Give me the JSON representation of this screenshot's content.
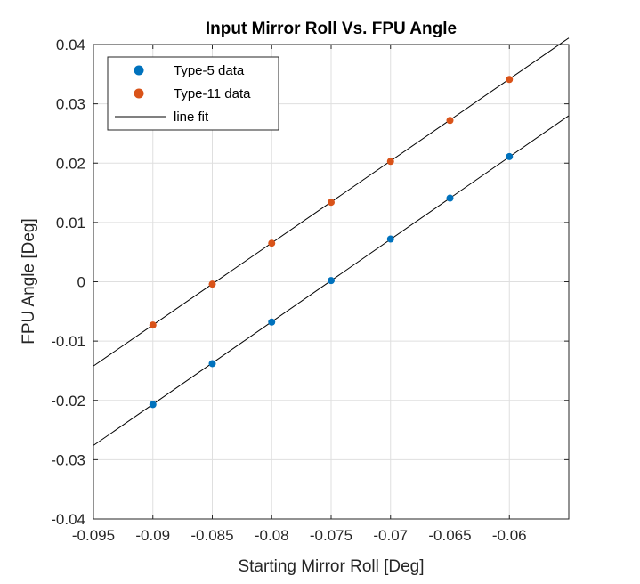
{
  "chart_data": {
    "type": "scatter",
    "title": "Input Mirror Roll Vs. FPU Angle",
    "xlabel": "Starting Mirror Roll [Deg]",
    "ylabel": "FPU Angle [Deg]",
    "xlim": [
      -0.095,
      -0.055
    ],
    "ylim": [
      -0.04,
      0.04
    ],
    "grid": true,
    "legend_position": "top-left",
    "x_ticks": [
      -0.095,
      -0.09,
      -0.085,
      -0.08,
      -0.075,
      -0.07,
      -0.065,
      -0.06
    ],
    "x_tick_labels": [
      "-0.095",
      "-0.09",
      "-0.085",
      "-0.08",
      "-0.075",
      "-0.07",
      "-0.065",
      "-0.06"
    ],
    "y_ticks": [
      -0.04,
      -0.03,
      -0.02,
      -0.01,
      0,
      0.01,
      0.02,
      0.03,
      0.04
    ],
    "y_tick_labels": [
      "-0.04",
      "-0.03",
      "-0.02",
      "-0.01",
      "0",
      "0.01",
      "0.02",
      "0.03",
      "0.04"
    ],
    "series": [
      {
        "name": "Type-5 data",
        "color": "#0072BD",
        "marker": "dot",
        "x": [
          -0.09,
          -0.085,
          -0.08,
          -0.075,
          -0.07,
          -0.065,
          -0.06
        ],
        "y": [
          -0.0207,
          -0.0138,
          -0.0068,
          0.0002,
          0.0072,
          0.0141,
          0.0211
        ]
      },
      {
        "name": "Type-11 data",
        "color": "#D95319",
        "marker": "dot",
        "x": [
          -0.09,
          -0.085,
          -0.08,
          -0.075,
          -0.07,
          -0.065,
          -0.06
        ],
        "y": [
          -0.0073,
          -0.0004,
          0.0065,
          0.0134,
          0.0203,
          0.0272,
          0.0341
        ]
      }
    ],
    "fits": [
      {
        "name": "line fit",
        "color": "#000000",
        "x": [
          -0.095,
          -0.055
        ],
        "y": [
          -0.0276,
          0.028
        ]
      },
      {
        "name": "line fit",
        "color": "#000000",
        "x": [
          -0.095,
          -0.055
        ],
        "y": [
          -0.0142,
          0.0411
        ]
      }
    ],
    "legend": [
      "Type-5 data",
      "Type-11 data",
      "line fit"
    ]
  }
}
